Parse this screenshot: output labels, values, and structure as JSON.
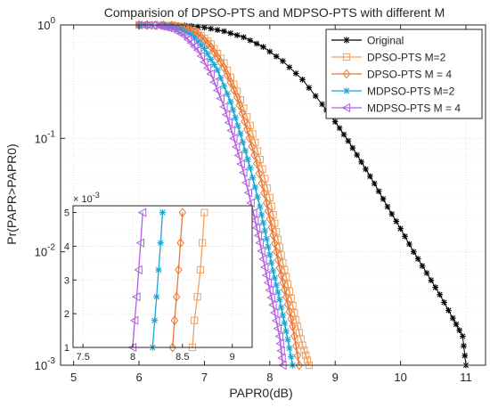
{
  "chart_data": {
    "type": "line",
    "title": "Comparision of DPSO-PTS and MDPSO-PTS with different M",
    "xlabel": "PAPR0(dB)",
    "ylabel": "Pr(PAPR>PAPR0)",
    "xlim": [
      4.8,
      11.3
    ],
    "ylim": [
      0.001,
      1
    ],
    "yscale": "log",
    "xticks": [
      "5",
      "6",
      "7",
      "8",
      "9",
      "10",
      "11"
    ],
    "yticks": [
      "10^0",
      "10^-1",
      "10^-2",
      "10^-3"
    ],
    "grid": true,
    "legend_position": "top-right",
    "series": [
      {
        "name": "Original",
        "color": "#000000",
        "marker": "star",
        "x": [
          6.4,
          6.7,
          7.0,
          7.3,
          7.6,
          7.9,
          8.2,
          8.5,
          8.8,
          9.0,
          9.2,
          9.4,
          9.6,
          9.8,
          10.0,
          10.2,
          10.4,
          10.6,
          10.8,
          10.95,
          11.0
        ],
        "y": [
          1.0,
          0.99,
          0.95,
          0.88,
          0.78,
          0.64,
          0.48,
          0.33,
          0.2,
          0.14,
          0.095,
          0.062,
          0.04,
          0.025,
          0.016,
          0.01,
          0.0065,
          0.0042,
          0.0026,
          0.0018,
          0.001
        ]
      },
      {
        "name": "DPSO-PTS M=2",
        "color": "#f0a160",
        "marker": "square",
        "x": [
          6.0,
          6.5,
          6.7,
          6.9,
          7.1,
          7.3,
          7.5,
          7.7,
          7.85,
          8.0,
          8.1,
          8.2,
          8.3,
          8.4,
          8.5,
          8.6
        ],
        "y": [
          1.0,
          0.99,
          0.95,
          0.85,
          0.68,
          0.46,
          0.26,
          0.13,
          0.065,
          0.03,
          0.015,
          0.008,
          0.0045,
          0.0025,
          0.0015,
          0.001
        ]
      },
      {
        "name": "DPSO-PTS M = 4",
        "color": "#e8773a",
        "marker": "diamond",
        "x": [
          6.0,
          6.5,
          6.7,
          6.9,
          7.1,
          7.3,
          7.5,
          7.65,
          7.8,
          7.95,
          8.05,
          8.15,
          8.25,
          8.35,
          8.45
        ],
        "y": [
          1.0,
          0.99,
          0.94,
          0.83,
          0.64,
          0.42,
          0.23,
          0.12,
          0.06,
          0.027,
          0.014,
          0.0072,
          0.004,
          0.0022,
          0.001
        ]
      },
      {
        "name": "MDPSO-PTS M=2",
        "color": "#1aa7d4",
        "marker": "asterisk",
        "x": [
          6.0,
          6.4,
          6.6,
          6.8,
          7.0,
          7.2,
          7.4,
          7.55,
          7.7,
          7.85,
          7.95,
          8.05,
          8.15,
          8.25,
          8.35
        ],
        "y": [
          1.0,
          0.99,
          0.94,
          0.82,
          0.62,
          0.4,
          0.21,
          0.11,
          0.055,
          0.025,
          0.013,
          0.0068,
          0.0038,
          0.002,
          0.001
        ]
      },
      {
        "name": "MDPSO-PTS M = 4",
        "color": "#b45fe0",
        "marker": "triangle-left",
        "x": [
          6.0,
          6.3,
          6.5,
          6.7,
          6.9,
          7.1,
          7.3,
          7.45,
          7.6,
          7.75,
          7.85,
          7.95,
          8.05,
          8.15,
          8.2
        ],
        "y": [
          1.0,
          0.99,
          0.93,
          0.8,
          0.6,
          0.37,
          0.19,
          0.1,
          0.05,
          0.022,
          0.012,
          0.0062,
          0.0034,
          0.0018,
          0.001
        ]
      }
    ],
    "inset": {
      "xlim": [
        7.4,
        9.2
      ],
      "ylim": [
        0.001,
        0.0052
      ],
      "xticks": [
        "7.5",
        "8",
        "8.5",
        "9"
      ],
      "yticks": [
        "1",
        "2",
        "3",
        "4",
        "5"
      ],
      "yexponent": "× 10",
      "yexponent_power": "-3",
      "series": [
        {
          "color": "#f0a160",
          "marker": "square",
          "x": [
            8.6,
            8.62,
            8.65,
            8.68,
            8.7,
            8.72
          ],
          "y": [
            0.001,
            0.0018,
            0.0025,
            0.0033,
            0.0041,
            0.005
          ]
        },
        {
          "color": "#e8773a",
          "marker": "diamond",
          "x": [
            8.4,
            8.42,
            8.44,
            8.46,
            8.48,
            8.5
          ],
          "y": [
            0.001,
            0.0018,
            0.0025,
            0.0033,
            0.0041,
            0.005
          ]
        },
        {
          "color": "#1aa7d4",
          "marker": "asterisk",
          "x": [
            8.2,
            8.22,
            8.24,
            8.26,
            8.28,
            8.3
          ],
          "y": [
            0.001,
            0.0018,
            0.0025,
            0.0033,
            0.0041,
            0.005
          ]
        },
        {
          "color": "#b45fe0",
          "marker": "triangle-left",
          "x": [
            8.0,
            8.02,
            8.04,
            8.06,
            8.08,
            8.1
          ],
          "y": [
            0.001,
            0.0018,
            0.0025,
            0.0033,
            0.0041,
            0.005
          ]
        }
      ]
    }
  }
}
